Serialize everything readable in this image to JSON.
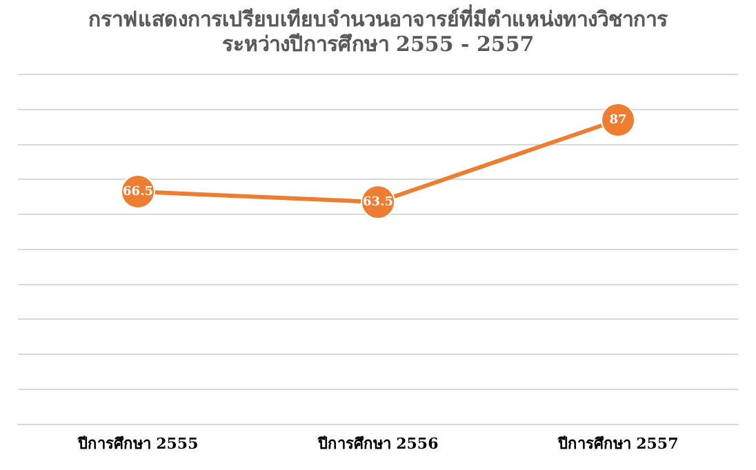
{
  "chart_data": {
    "type": "line",
    "title": "กราฟแสดงการเปรียบเทียบจำนวนอาจารย์ที่มีตำแหน่งทางวิชาการ\nระหว่างปีการศึกษา 2555 - 2557",
    "categories": [
      "ปีการศึกษา 2555",
      "ปีการศึกษา 2556",
      "ปีการศึกษา 2557"
    ],
    "series": [
      {
        "color": "#ed7d31",
        "values": [
          66.5,
          63.5,
          87
        ]
      }
    ],
    "ylim": [
      0,
      100
    ],
    "yticks": [
      {
        "value": 0,
        "label": null
      },
      {
        "value": 10,
        "label": null
      },
      {
        "value": 20,
        "label": null
      },
      {
        "value": 30,
        "label": null
      },
      {
        "value": 40,
        "label": null
      },
      {
        "value": 50,
        "label": null
      },
      {
        "value": 60,
        "label": null
      },
      {
        "value": 70,
        "label": null
      },
      {
        "value": 80,
        "label": null
      },
      {
        "value": 90,
        "label": null
      },
      {
        "value": 100,
        "label": null
      }
    ],
    "tick_labels": "x",
    "grid": "y",
    "legend": false,
    "marker": "circle",
    "line_style": "solid",
    "data_labels": true
  }
}
